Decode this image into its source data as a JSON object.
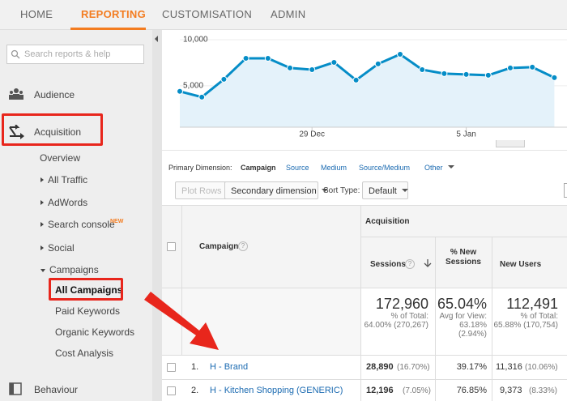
{
  "nav": [
    "HOME",
    "REPORTING",
    "CUSTOMISATION",
    "ADMIN"
  ],
  "sidebar": {
    "search_placeholder": "Search reports & help",
    "items": [
      "Audience",
      "Acquisition",
      "Overview",
      "All Traffic",
      "AdWords",
      "Search console",
      "Social",
      "Campaigns",
      "All Campaigns",
      "Paid Keywords",
      "Organic Keywords",
      "Cost Analysis",
      "Behaviour"
    ],
    "badge": "NEW"
  },
  "chart_data": {
    "type": "line",
    "categories": [
      null,
      null,
      null,
      null,
      null,
      null,
      "29 Dec",
      null,
      null,
      null,
      null,
      null,
      null,
      "5 Jan",
      null,
      null,
      null,
      null
    ],
    "values": [
      4390,
      3770,
      5700,
      7980,
      7980,
      6930,
      6750,
      7540,
      5610,
      7370,
      8420,
      6750,
      6320,
      6230,
      6140,
      6930,
      7020,
      5880
    ],
    "color": "#058dc7",
    "ylim": [
      500,
      10000
    ],
    "yticks": [
      {
        "value": 10000,
        "label": "10,000"
      },
      {
        "value": 5000,
        "label": "5,000"
      }
    ]
  },
  "primary_dimension": {
    "label": "Primary Dimension:",
    "options": [
      "Campaign",
      "Source",
      "Medium",
      "Source/Medium",
      "Other"
    ]
  },
  "toolbar": {
    "plot_rows": "Plot Rows",
    "secondary_dimension": "Secondary dimension",
    "sort_type": "Sort Type:",
    "sort_default": "Default"
  },
  "table": {
    "group": "Acquisition",
    "columns": [
      "Campaign",
      "Sessions",
      "% New Sessions",
      "New Users"
    ],
    "totals": {
      "sessions": "172,960",
      "sessions_note": "% of Total:",
      "sessions_detail": "64.00% (270,267)",
      "new_sessions_pct": "65.04%",
      "new_sessions_note": "Avg for View:",
      "new_sessions_detail": "63.18%",
      "new_sessions_diff": "(2.94%)",
      "new_users": "112,491",
      "new_users_note": "% of Total:",
      "new_users_detail": "65.88% (170,754)"
    },
    "rows": [
      {
        "index": "1.",
        "campaign": "H - Brand",
        "sessions": "28,890",
        "sessions_pct": "(16.70%)",
        "new_sessions_pct": "39.17%",
        "new_users": "11,316",
        "new_users_pct": "(10.06%)"
      },
      {
        "index": "2.",
        "campaign": "H - Kitchen Shopping (GENERIC)",
        "sessions": "12,196",
        "sessions_pct": "(7.05%)",
        "new_sessions_pct": "76.85%",
        "new_users": "9,373",
        "new_users_pct": "(8.33%)"
      }
    ]
  }
}
